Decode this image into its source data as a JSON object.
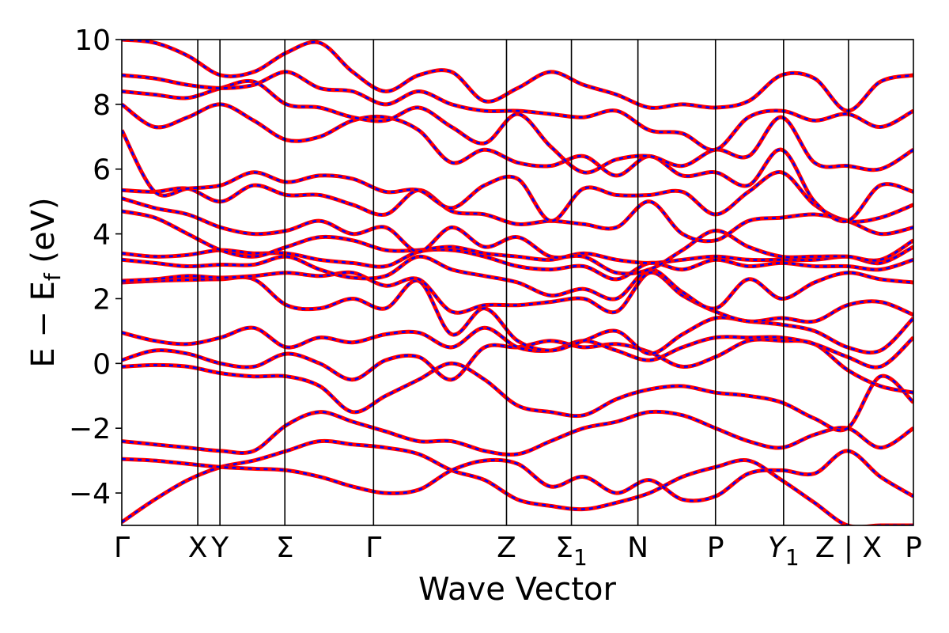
{
  "chart_data": {
    "type": "line",
    "title": "",
    "xlabel": "Wave Vector",
    "ylabel": "E − E",
    "ylabel_subscript": "f",
    "ylabel_suffix": " (eV)",
    "ylim": [
      -5,
      10
    ],
    "y_ticks": [
      -4,
      -2,
      0,
      2,
      4,
      6,
      8,
      10
    ],
    "y_tick_labels": [
      "−4",
      "−2",
      "0",
      "2",
      "4",
      "6",
      "8",
      "10"
    ],
    "x_range": [
      0,
      10.0
    ],
    "high_symmetry_points": [
      {
        "label": "Γ",
        "x": 0.0
      },
      {
        "label": "X",
        "x": 0.96
      },
      {
        "label": "Y",
        "x": 1.24
      },
      {
        "label": "Σ",
        "x": 2.06
      },
      {
        "label": "Γ",
        "x": 3.18
      },
      {
        "label": "Z",
        "x": 4.86
      },
      {
        "label": "Σ",
        "sub": "1",
        "x": 5.68
      },
      {
        "label": "N",
        "x": 6.52
      },
      {
        "label": "P",
        "x": 7.5
      },
      {
        "label": "Y",
        "sub": "1",
        "x": 8.36,
        "italic": true
      },
      {
        "label": "Z | X",
        "x": 9.18
      },
      {
        "label": "P",
        "x": 10.0
      }
    ],
    "grid": false,
    "series_styles": [
      {
        "color": "#ff0000",
        "dash": "solid"
      },
      {
        "color": "#0000ff",
        "dash": "dashed"
      }
    ],
    "bands": [
      [
        -4.9,
        -4.2,
        -3.6,
        -3.2,
        -3.0,
        -2.7,
        -2.4,
        -2.5,
        -2.6,
        -2.8,
        -3.3,
        -3.6,
        -4.2,
        -4.4,
        -4.5,
        -4.3,
        -4.0,
        -3.5,
        -3.2,
        -3.0,
        -3.6,
        -4.3,
        -5.0,
        -5.0,
        -5.0
      ],
      [
        -2.95,
        -3.0,
        -3.1,
        -3.2,
        -3.25,
        -3.3,
        -3.5,
        -3.8,
        -4.0,
        -3.9,
        -3.3,
        -3.0,
        -3.1,
        -3.8,
        -3.5,
        -4.0,
        -3.6,
        -4.2,
        -4.1,
        -3.4,
        -3.3,
        -3.4,
        -2.7,
        -3.5,
        -4.1
      ],
      [
        -2.4,
        -2.5,
        -2.6,
        -2.7,
        -2.7,
        -1.9,
        -1.5,
        -1.8,
        -2.1,
        -2.4,
        -2.4,
        -2.7,
        -2.8,
        -2.4,
        -2.0,
        -1.8,
        -1.5,
        -1.6,
        -2.0,
        -2.4,
        -2.6,
        -2.2,
        -2.0,
        -2.6,
        -2.0
      ],
      [
        -0.1,
        -0.05,
        -0.1,
        -0.3,
        -0.4,
        -0.4,
        -0.7,
        -1.5,
        -1.0,
        -0.5,
        0.0,
        -0.5,
        -1.3,
        -1.5,
        -1.6,
        -1.1,
        -0.8,
        -0.7,
        -0.9,
        -1.0,
        -1.2,
        -1.7,
        -2.0,
        -0.4,
        -1.2
      ],
      [
        0.1,
        0.4,
        0.3,
        0.0,
        -0.1,
        0.3,
        0.0,
        -0.5,
        0.1,
        0.2,
        -0.5,
        0.5,
        0.5,
        0.7,
        0.5,
        0.6,
        0.35,
        -0.1,
        0.2,
        0.7,
        0.7,
        0.6,
        -0.2,
        -0.7,
        -0.9
      ],
      [
        0.95,
        0.7,
        0.6,
        0.8,
        1.1,
        0.5,
        0.8,
        0.65,
        0.9,
        0.95,
        0.5,
        1.1,
        0.5,
        0.4,
        0.7,
        0.4,
        0.1,
        0.5,
        0.8,
        0.8,
        0.8,
        0.6,
        0.2,
        -0.1,
        0.8
      ],
      [
        2.5,
        2.55,
        2.58,
        2.6,
        2.6,
        1.8,
        1.7,
        2.0,
        1.7,
        2.55,
        0.9,
        1.7,
        0.7,
        0.4,
        0.7,
        1.0,
        0.3,
        0.9,
        1.4,
        1.3,
        1.2,
        1.0,
        0.5,
        0.4,
        1.4
      ],
      [
        2.55,
        2.6,
        2.7,
        2.65,
        2.7,
        2.8,
        2.7,
        2.8,
        2.4,
        2.6,
        1.6,
        1.8,
        1.8,
        1.9,
        2.0,
        1.6,
        2.8,
        2.1,
        1.6,
        1.3,
        1.4,
        1.3,
        1.8,
        1.9,
        1.5
      ],
      [
        3.2,
        3.1,
        3.0,
        3.05,
        3.05,
        3.3,
        2.9,
        2.65,
        2.7,
        3.3,
        2.9,
        2.7,
        2.5,
        2.1,
        2.3,
        2.0,
        2.9,
        2.2,
        1.7,
        2.6,
        2.0,
        2.5,
        2.8,
        2.6,
        2.5
      ],
      [
        3.4,
        3.3,
        3.35,
        3.5,
        3.4,
        3.4,
        3.2,
        3.1,
        3.0,
        3.45,
        3.5,
        3.3,
        3.0,
        2.9,
        3.0,
        2.6,
        3.1,
        2.9,
        3.2,
        3.0,
        3.1,
        3.0,
        3.0,
        2.9,
        3.2
      ],
      [
        4.7,
        4.5,
        4.0,
        3.5,
        3.3,
        3.6,
        3.9,
        3.8,
        3.5,
        3.5,
        3.6,
        3.4,
        3.3,
        3.2,
        3.4,
        3.2,
        3.1,
        3.2,
        3.3,
        3.2,
        3.2,
        3.2,
        3.3,
        3.1,
        3.6
      ],
      [
        5.1,
        4.8,
        4.6,
        4.2,
        4.0,
        4.1,
        4.4,
        4.0,
        4.2,
        3.45,
        4.2,
        3.6,
        3.9,
        3.3,
        3.3,
        2.8,
        2.9,
        3.5,
        4.1,
        3.6,
        3.3,
        3.3,
        3.3,
        3.2,
        3.8
      ],
      [
        5.35,
        5.3,
        5.4,
        5.0,
        5.5,
        5.2,
        5.2,
        4.9,
        4.6,
        5.35,
        4.7,
        4.6,
        4.3,
        4.4,
        4.3,
        4.2,
        5.0,
        4.0,
        3.8,
        4.4,
        4.5,
        4.6,
        4.4,
        4.0,
        4.2
      ],
      [
        7.2,
        5.3,
        5.4,
        5.5,
        5.9,
        5.6,
        5.8,
        5.7,
        5.3,
        5.35,
        4.8,
        5.5,
        5.7,
        4.4,
        5.4,
        5.2,
        5.2,
        5.3,
        4.6,
        5.3,
        5.9,
        4.9,
        4.4,
        4.5,
        4.9
      ],
      [
        8.0,
        7.3,
        7.6,
        8.0,
        7.5,
        6.9,
        7.0,
        7.5,
        7.6,
        7.2,
        6.2,
        6.6,
        6.2,
        6.1,
        6.4,
        5.8,
        6.4,
        5.8,
        5.9,
        5.5,
        6.6,
        5.0,
        4.4,
        5.5,
        5.3
      ],
      [
        8.4,
        8.3,
        8.2,
        8.5,
        8.7,
        8.0,
        7.9,
        7.6,
        7.5,
        7.9,
        7.3,
        6.8,
        7.7,
        6.7,
        5.9,
        6.3,
        6.4,
        6.1,
        6.6,
        6.4,
        7.6,
        6.2,
        6.1,
        6.0,
        6.6
      ],
      [
        8.9,
        8.8,
        8.6,
        8.5,
        8.6,
        9.0,
        8.5,
        8.4,
        8.0,
        8.4,
        8.0,
        7.8,
        7.8,
        7.7,
        7.6,
        7.8,
        7.2,
        7.1,
        6.6,
        7.6,
        7.8,
        7.5,
        7.7,
        7.3,
        7.8
      ],
      [
        10.0,
        9.9,
        9.5,
        8.9,
        9.0,
        9.6,
        9.9,
        9.0,
        8.4,
        8.9,
        9.0,
        8.1,
        8.5,
        9.0,
        8.6,
        8.3,
        7.9,
        8.0,
        7.9,
        8.1,
        8.9,
        8.8,
        7.8,
        8.7,
        8.9
      ]
    ]
  }
}
